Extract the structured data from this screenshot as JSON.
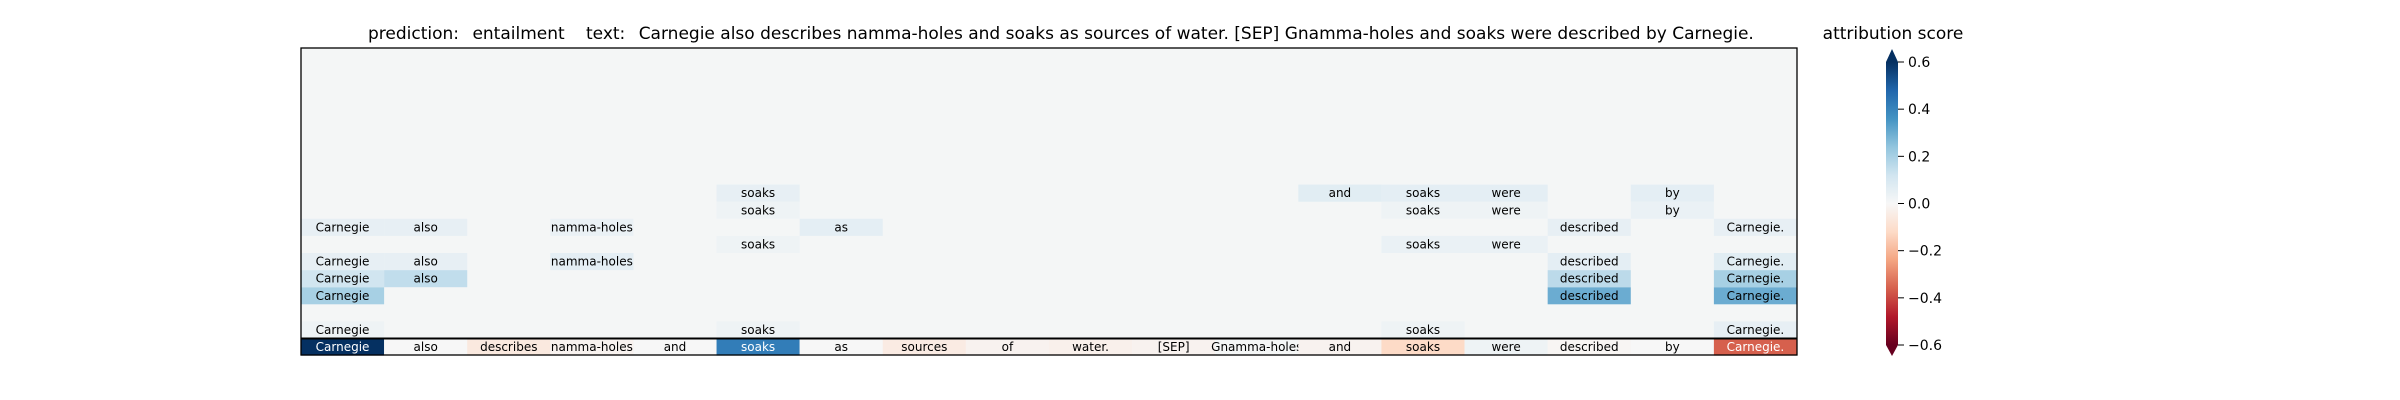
{
  "title": {
    "prediction_label": "prediction:",
    "prediction_value": "entailment",
    "text_label": "text:",
    "text_value": "Carnegie also describes namma-holes and soaks as sources of water. [SEP] Gnamma-holes and soaks were described by Carnegie."
  },
  "colorbar": {
    "title": "attribution score",
    "colormap": "RdBu",
    "vmin": -0.6,
    "vmax": 0.6,
    "extend": "both",
    "tick_values": [
      0.6,
      0.4,
      0.2,
      0.0,
      -0.2,
      -0.4,
      -0.6
    ],
    "tick_labels": [
      "0.6",
      "0.4",
      "0.2",
      "0.0",
      "−0.2",
      "−0.4",
      "−0.6"
    ]
  },
  "chart_data": {
    "type": "heatmap",
    "tokens": [
      "Carnegie",
      "also",
      "describes",
      "namma-holes",
      "and",
      "soaks",
      "as",
      "sources",
      "of",
      "water.",
      "[SEP]",
      "Gnamma-holes",
      "and",
      "soaks",
      "were",
      "described",
      "by",
      "Carnegie."
    ],
    "bottom_row": {
      "tokens": [
        "Carnegie",
        "also",
        "describes",
        "namma-holes",
        "and",
        "soaks",
        "as",
        "sources",
        "of",
        "water.",
        "[SEP]",
        "Gnamma-holes",
        "and",
        "soaks",
        "were",
        "described",
        "by",
        "Carnegie."
      ],
      "values": [
        0.6,
        0.0,
        -0.06,
        -0.02,
        0.0,
        0.42,
        0.0,
        -0.05,
        -0.02,
        -0.03,
        -0.02,
        0.01,
        -0.02,
        -0.12,
        0.03,
        -0.01,
        0.0,
        -0.36
      ]
    },
    "stack_rows": [
      {
        "row": 1,
        "cells": [
          {
            "col": 0,
            "value": 0.03
          },
          {
            "col": 5,
            "value": 0.03
          },
          {
            "col": 13,
            "value": 0.03
          },
          {
            "col": 17,
            "value": 0.05
          }
        ]
      },
      {
        "row": 3,
        "cells": [
          {
            "col": 0,
            "value": 0.2
          },
          {
            "col": 15,
            "value": 0.3
          },
          {
            "col": 17,
            "value": 0.3
          }
        ]
      },
      {
        "row": 4,
        "cells": [
          {
            "col": 0,
            "value": 0.12
          },
          {
            "col": 1,
            "value": 0.15
          },
          {
            "col": 15,
            "value": 0.16
          },
          {
            "col": 17,
            "value": 0.2
          }
        ]
      },
      {
        "row": 5,
        "cells": [
          {
            "col": 0,
            "value": 0.05
          },
          {
            "col": 1,
            "value": 0.05
          },
          {
            "col": 3,
            "value": 0.06
          },
          {
            "col": 15,
            "value": 0.06
          },
          {
            "col": 17,
            "value": 0.07
          }
        ]
      },
      {
        "row": 6,
        "cells": [
          {
            "col": 5,
            "value": 0.03
          },
          {
            "col": 13,
            "value": 0.04
          },
          {
            "col": 14,
            "value": 0.04
          }
        ]
      },
      {
        "row": 7,
        "cells": [
          {
            "col": 0,
            "value": 0.05
          },
          {
            "col": 1,
            "value": 0.05
          },
          {
            "col": 3,
            "value": 0.04
          },
          {
            "col": 6,
            "value": 0.06
          },
          {
            "col": 15,
            "value": 0.05
          },
          {
            "col": 17,
            "value": 0.05
          }
        ]
      },
      {
        "row": 8,
        "cells": [
          {
            "col": 5,
            "value": 0.03
          },
          {
            "col": 13,
            "value": 0.03
          },
          {
            "col": 14,
            "value": 0.03
          },
          {
            "col": 16,
            "value": 0.04
          }
        ]
      },
      {
        "row": 9,
        "cells": [
          {
            "col": 5,
            "value": 0.05
          },
          {
            "col": 12,
            "value": 0.07
          },
          {
            "col": 13,
            "value": 0.06
          },
          {
            "col": 14,
            "value": 0.06
          },
          {
            "col": 16,
            "value": 0.06
          }
        ]
      }
    ]
  }
}
